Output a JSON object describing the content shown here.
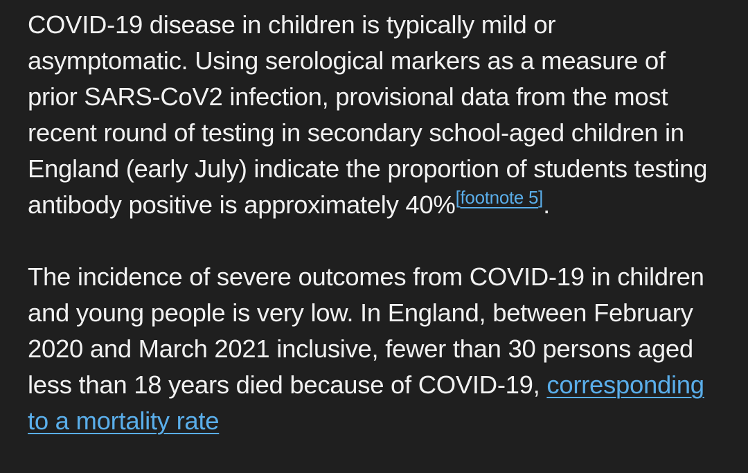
{
  "paragraph1": {
    "text": "COVID-19 disease in children is typically mild or asymptomatic. Using serological markers as a measure of prior SARS-CoV2 infection, provisional data from the most recent round of testing in secondary school-aged children in England (early July) indicate the proportion of students testing antibody positive is approximately 40%",
    "footnote_open": "[",
    "footnote_label": "footnote 5",
    "footnote_close": "]",
    "end": "."
  },
  "paragraph2": {
    "text": "The incidence of severe outcomes from COVID-19 in children and young people is very low. In England, between February 2020 and March 2021 inclusive, fewer than 30 persons aged less than 18 years died because of COVID-19, ",
    "link_text": "corresponding to a mortality rate"
  },
  "colors": {
    "background": "#1f1f1f",
    "text": "#f1f1f1",
    "link": "#5aaeea"
  }
}
